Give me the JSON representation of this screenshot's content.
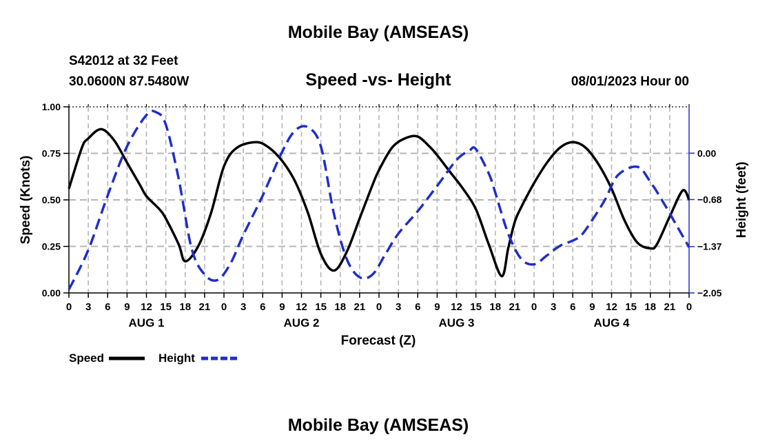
{
  "page_title": "Mobile Bay (AMSEAS)",
  "footer_title": "Mobile Bay (AMSEAS)",
  "station": {
    "line1": "S42012 at 32 Feet",
    "line2": "30.0600N  87.5480W"
  },
  "date_label": "08/01/2023 Hour 00",
  "chart_data": {
    "type": "line",
    "title": "Speed -vs- Height",
    "xlabel": "Forecast (Z)",
    "ylabel_left": "Speed (Knots)",
    "ylabel_right": "Height (feet)",
    "x_unit": "hours since 08/01/2023 00Z",
    "xlim": [
      0,
      96
    ],
    "ylim_left": [
      0,
      1
    ],
    "ylim_right": [
      -2.05,
      0.68
    ],
    "x_tick_labels": [
      "0",
      "3",
      "6",
      "9",
      "12",
      "15",
      "18",
      "21",
      "0",
      "3",
      "6",
      "9",
      "12",
      "15",
      "18",
      "21",
      "0",
      "3",
      "6",
      "9",
      "12",
      "15",
      "18",
      "21",
      "0",
      "3",
      "6",
      "9",
      "12",
      "15",
      "18",
      "21",
      "0"
    ],
    "day_labels": [
      {
        "label": "AUG 1",
        "x": 12
      },
      {
        "label": "AUG 2",
        "x": 36
      },
      {
        "label": "AUG 3",
        "x": 60
      },
      {
        "label": "AUG 4",
        "x": 84
      }
    ],
    "y_left_ticks": [
      {
        "value": 0.0,
        "label": "0.00"
      },
      {
        "value": 0.25,
        "label": "0.25"
      },
      {
        "value": 0.5,
        "label": "0.50"
      },
      {
        "value": 0.75,
        "label": "0.75"
      },
      {
        "value": 1.0,
        "label": "1.00"
      }
    ],
    "y_right_ticks": [
      {
        "value": -2.05,
        "label": "−2.05"
      },
      {
        "value": -1.37,
        "label": "−1.37"
      },
      {
        "value": -0.68,
        "label": "−0.68"
      },
      {
        "value": 0.0,
        "label": "0.00"
      }
    ],
    "grid": true,
    "series": [
      {
        "name": "Speed",
        "axis": "left",
        "color": "#000000",
        "dash": "solid",
        "x": [
          0,
          2,
          3,
          5,
          7,
          9,
          11,
          12,
          14,
          15,
          17,
          18,
          20,
          22,
          24,
          26,
          29,
          31,
          33,
          35,
          37,
          39,
          41,
          43,
          45,
          47,
          48,
          50,
          52,
          54,
          56,
          57,
          59,
          61,
          63,
          65,
          67,
          68,
          69,
          70,
          72,
          74,
          76,
          78,
          80,
          82,
          84,
          86,
          88,
          90,
          91,
          93,
          95,
          96
        ],
        "y": [
          0.56,
          0.78,
          0.83,
          0.88,
          0.82,
          0.7,
          0.58,
          0.52,
          0.45,
          0.4,
          0.26,
          0.17,
          0.25,
          0.43,
          0.68,
          0.78,
          0.81,
          0.78,
          0.71,
          0.6,
          0.43,
          0.21,
          0.12,
          0.22,
          0.4,
          0.58,
          0.66,
          0.78,
          0.83,
          0.84,
          0.78,
          0.74,
          0.65,
          0.56,
          0.45,
          0.26,
          0.09,
          0.24,
          0.38,
          0.46,
          0.59,
          0.7,
          0.78,
          0.81,
          0.78,
          0.69,
          0.56,
          0.39,
          0.27,
          0.24,
          0.26,
          0.41,
          0.55,
          0.5
        ]
      },
      {
        "name": "Height",
        "axis": "right",
        "color": "#1f2ec8",
        "dash": "dashed",
        "x": [
          0,
          3,
          6,
          9,
          12,
          13.5,
          15,
          17,
          19,
          21,
          23,
          25,
          27,
          30,
          33,
          35,
          37,
          39,
          41,
          43,
          45,
          47,
          49,
          51,
          54,
          57,
          60,
          62,
          63,
          65,
          66,
          68,
          70,
          72,
          74,
          76,
          79,
          81,
          83,
          85,
          88,
          90,
          92,
          94,
          96
        ],
        "y": [
          -2.0,
          -1.42,
          -0.62,
          0.1,
          0.56,
          0.6,
          0.42,
          -0.38,
          -1.4,
          -1.78,
          -1.86,
          -1.62,
          -1.2,
          -0.62,
          0.02,
          0.33,
          0.38,
          0.1,
          -0.88,
          -1.55,
          -1.82,
          -1.78,
          -1.48,
          -1.18,
          -0.85,
          -0.48,
          -0.1,
          0.04,
          0.06,
          -0.3,
          -0.58,
          -1.18,
          -1.55,
          -1.63,
          -1.5,
          -1.36,
          -1.23,
          -0.98,
          -0.68,
          -0.32,
          -0.2,
          -0.42,
          -0.72,
          -1.05,
          -1.38
        ]
      }
    ]
  },
  "legend": {
    "items": [
      {
        "label": "Speed",
        "color": "#000000",
        "dash": "solid"
      },
      {
        "label": "Height",
        "color": "#1f2ec8",
        "dash": "dashed"
      }
    ]
  }
}
